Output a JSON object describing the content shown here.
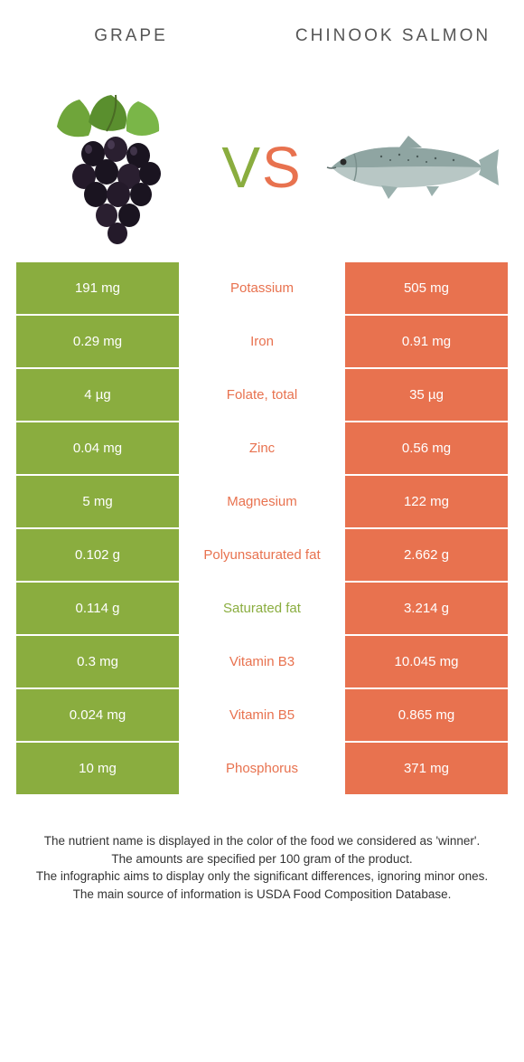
{
  "colors": {
    "left": "#8aad3f",
    "right": "#e8724f",
    "text": "#555555",
    "footer": "#333333",
    "white": "#ffffff"
  },
  "header": {
    "left": "GRAPE",
    "right": "CHINOOK SALMON"
  },
  "vs": {
    "v": "V",
    "s": "S"
  },
  "rows": [
    {
      "left": "191 mg",
      "label": "Potassium",
      "right": "505 mg",
      "winner": "right"
    },
    {
      "left": "0.29 mg",
      "label": "Iron",
      "right": "0.91 mg",
      "winner": "right"
    },
    {
      "left": "4 µg",
      "label": "Folate, total",
      "right": "35 µg",
      "winner": "right"
    },
    {
      "left": "0.04 mg",
      "label": "Zinc",
      "right": "0.56 mg",
      "winner": "right"
    },
    {
      "left": "5 mg",
      "label": "Magnesium",
      "right": "122 mg",
      "winner": "right"
    },
    {
      "left": "0.102 g",
      "label": "Polyunsaturated fat",
      "right": "2.662 g",
      "winner": "right"
    },
    {
      "left": "0.114 g",
      "label": "Saturated fat",
      "right": "3.214 g",
      "winner": "left"
    },
    {
      "left": "0.3 mg",
      "label": "Vitamin B3",
      "right": "10.045 mg",
      "winner": "right"
    },
    {
      "left": "0.024 mg",
      "label": "Vitamin B5",
      "right": "0.865 mg",
      "winner": "right"
    },
    {
      "left": "10 mg",
      "label": "Phosphorus",
      "right": "371 mg",
      "winner": "right"
    }
  ],
  "footer": {
    "line1": "The nutrient name is displayed in the color of the food we considered as 'winner'.",
    "line2": "The amounts are specified per 100 gram of the product.",
    "line3": "The infographic aims to display only the significant differences, ignoring minor ones.",
    "line4": "The main source of information is USDA Food Composition Database."
  }
}
